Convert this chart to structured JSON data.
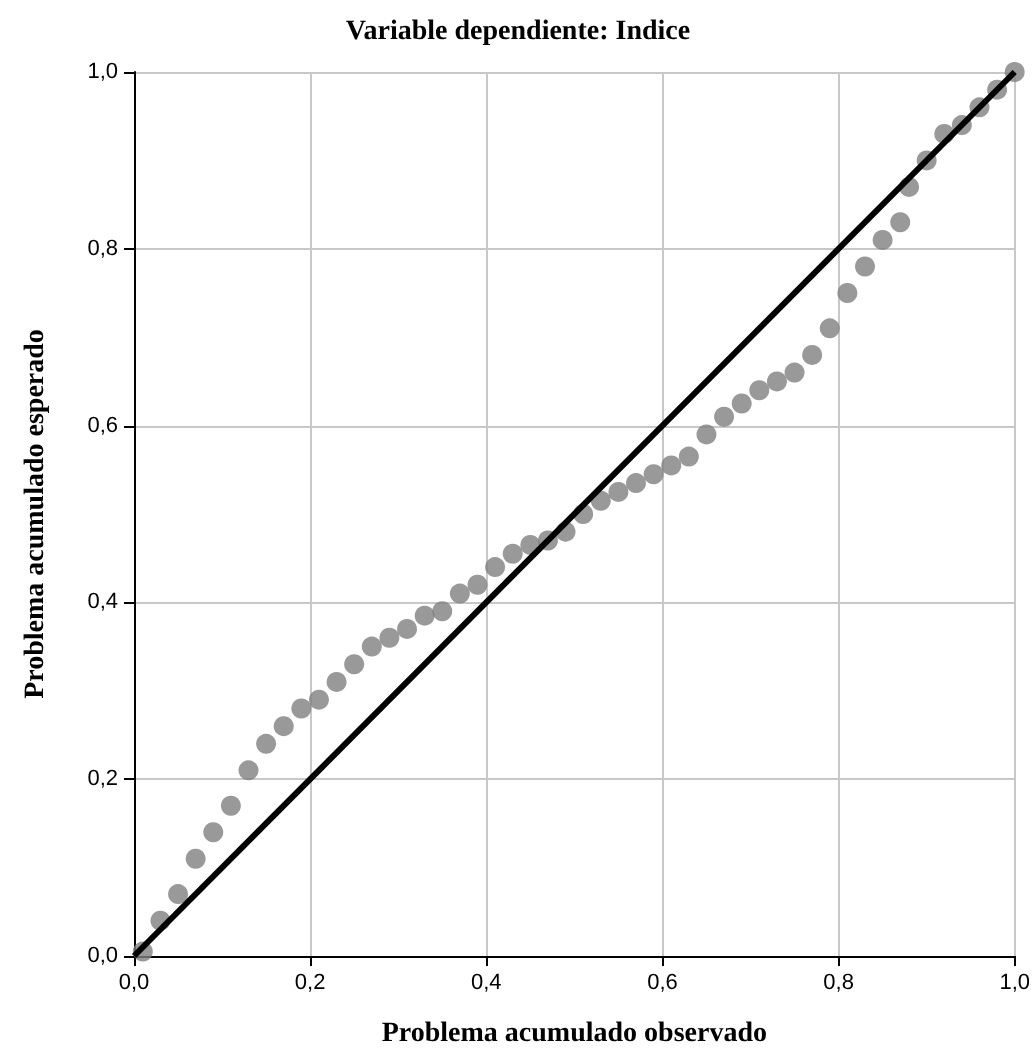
{
  "chart_data": {
    "type": "scatter",
    "title": "Variable dependiente: Indice",
    "xlabel": "Problema acumulado observado",
    "ylabel": "Problema acumulado esperado",
    "xlim": [
      0,
      1
    ],
    "ylim": [
      0,
      1
    ],
    "xticks": [
      {
        "value": 0,
        "label": "0,0"
      },
      {
        "value": 0.2,
        "label": "0,2"
      },
      {
        "value": 0.4,
        "label": "0,4"
      },
      {
        "value": 0.6,
        "label": "0,6"
      },
      {
        "value": 0.8,
        "label": "0,8"
      },
      {
        "value": 1,
        "label": "1,0"
      }
    ],
    "yticks": [
      {
        "value": 0,
        "label": "0,0"
      },
      {
        "value": 0.2,
        "label": "0,2"
      },
      {
        "value": 0.4,
        "label": "0,4"
      },
      {
        "value": 0.6,
        "label": "0,6"
      },
      {
        "value": 0.8,
        "label": "0,8"
      },
      {
        "value": 1,
        "label": "1,0"
      }
    ],
    "grid": true,
    "marker": "circle",
    "series": [
      {
        "type": "scatter",
        "color": "#7f7f7f",
        "x": [
          0.01,
          0.03,
          0.05,
          0.07,
          0.09,
          0.11,
          0.13,
          0.15,
          0.17,
          0.19,
          0.21,
          0.23,
          0.25,
          0.27,
          0.29,
          0.31,
          0.33,
          0.35,
          0.37,
          0.39,
          0.41,
          0.43,
          0.45,
          0.47,
          0.49,
          0.51,
          0.53,
          0.55,
          0.57,
          0.59,
          0.61,
          0.63,
          0.65,
          0.67,
          0.69,
          0.71,
          0.73,
          0.75,
          0.77,
          0.79,
          0.81,
          0.83,
          0.85,
          0.87,
          0.88,
          0.9,
          0.92,
          0.94,
          0.96,
          0.98,
          1.0
        ],
        "values": [
          0.005,
          0.04,
          0.07,
          0.11,
          0.14,
          0.17,
          0.21,
          0.24,
          0.26,
          0.28,
          0.29,
          0.31,
          0.33,
          0.35,
          0.36,
          0.37,
          0.385,
          0.39,
          0.41,
          0.42,
          0.44,
          0.455,
          0.465,
          0.47,
          0.48,
          0.5,
          0.515,
          0.525,
          0.535,
          0.545,
          0.555,
          0.565,
          0.59,
          0.61,
          0.625,
          0.64,
          0.65,
          0.66,
          0.68,
          0.71,
          0.75,
          0.78,
          0.81,
          0.83,
          0.87,
          0.9,
          0.93,
          0.94,
          0.96,
          0.98,
          1.0
        ]
      },
      {
        "type": "line",
        "color": "#000000",
        "marker": "none",
        "x": [
          0,
          1
        ],
        "values": [
          0,
          1
        ]
      }
    ]
  }
}
